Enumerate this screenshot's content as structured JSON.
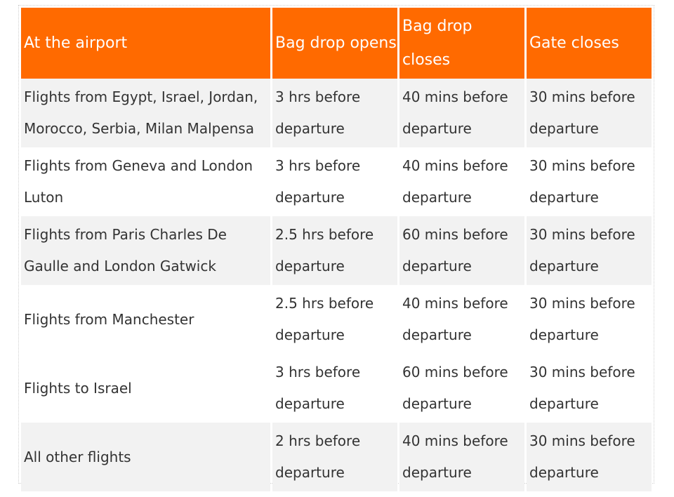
{
  "headers": [
    [
      "At the airport"
    ],
    [
      "Bag drop opens"
    ],
    [
      "Bag drop",
      "closes"
    ],
    [
      "Gate closes"
    ]
  ],
  "rows": [
    {
      "location": [
        "Flights from Egypt, Israel, Jordan,",
        "Morocco, Serbia, Milan Malpensa"
      ],
      "bag_drop_opens": [
        "3 hrs before",
        "departure"
      ],
      "bag_drop_closes": [
        "40 mins before",
        "departure"
      ],
      "gate_closes": [
        "30 mins before",
        "departure"
      ]
    },
    {
      "location": [
        "Flights from Geneva and London",
        "Luton"
      ],
      "bag_drop_opens": [
        "3 hrs before",
        "departure"
      ],
      "bag_drop_closes": [
        "40 mins before",
        "departure"
      ],
      "gate_closes": [
        "30 mins before",
        "departure"
      ]
    },
    {
      "location": [
        "Flights from Paris Charles De",
        "Gaulle and London Gatwick"
      ],
      "bag_drop_opens": [
        "2.5 hrs before",
        "departure"
      ],
      "bag_drop_closes": [
        "60 mins before",
        "departure"
      ],
      "gate_closes": [
        "30 mins before",
        "departure"
      ]
    },
    {
      "location": [
        "Flights from Manchester"
      ],
      "bag_drop_opens": [
        "2.5 hrs before",
        "departure"
      ],
      "bag_drop_closes": [
        "40 mins before",
        "departure"
      ],
      "gate_closes": [
        "30 mins before",
        "departure"
      ]
    },
    {
      "location": [
        "Flights to Israel"
      ],
      "bag_drop_opens": [
        "3 hrs before",
        "departure"
      ],
      "bag_drop_closes": [
        "60 mins before",
        "departure"
      ],
      "gate_closes": [
        "30 mins before",
        "departure"
      ]
    },
    {
      "location": [
        "All other flights"
      ],
      "bag_drop_opens": [
        "2 hrs before",
        "departure"
      ],
      "bag_drop_closes": [
        "40 mins before",
        "departure"
      ],
      "gate_closes": [
        "30 mins before",
        "departure"
      ]
    }
  ],
  "colors": {
    "header_bg": "#ff6a00",
    "header_text": "#ffffff",
    "row_shade": "#f2f2f2",
    "row_plain": "#ffffff",
    "body_text": "#333333"
  }
}
